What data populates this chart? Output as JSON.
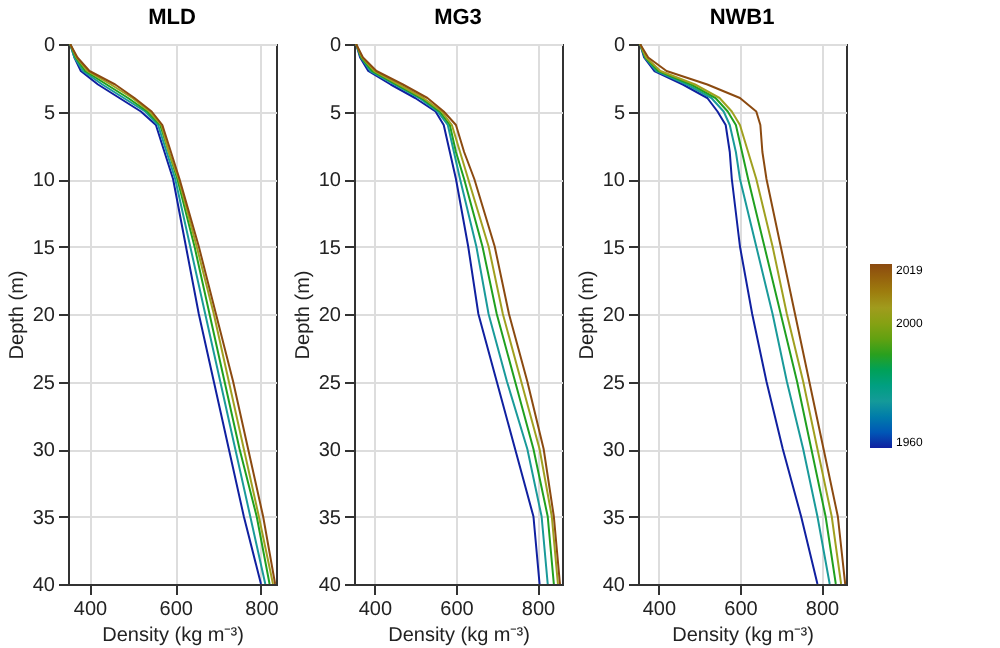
{
  "chart_data": [
    {
      "type": "line",
      "title": "MLD",
      "xlabel": "Density (kg m⁻³)",
      "ylabel": "Depth (m)",
      "xlim": [
        350,
        835
      ],
      "xticks": [
        400,
        600,
        800
      ],
      "ylim": [
        40,
        0
      ],
      "yticks": [
        0,
        5,
        10,
        15,
        20,
        25,
        30,
        35,
        40
      ],
      "grid": true,
      "series": [
        {
          "color": "#1020a0",
          "x": [
            355,
            365,
            380,
            420,
            470,
            520,
            555,
            575,
            595,
            625,
            655,
            690,
            725,
            760,
            800
          ],
          "values": [
            0,
            1,
            2,
            3,
            4,
            5,
            6,
            8,
            10,
            15,
            20,
            25,
            30,
            35,
            40
          ]
        },
        {
          "color": "#1a9a9a",
          "x": [
            355,
            365,
            385,
            430,
            480,
            530,
            560,
            580,
            600,
            635,
            670,
            705,
            740,
            775,
            810
          ],
          "values": [
            0,
            1,
            2,
            3,
            4,
            5,
            6,
            8,
            10,
            15,
            20,
            25,
            30,
            35,
            40
          ]
        },
        {
          "color": "#20a020",
          "x": [
            355,
            368,
            390,
            440,
            490,
            535,
            565,
            585,
            605,
            645,
            680,
            715,
            750,
            790,
            820
          ],
          "values": [
            0,
            1,
            2,
            3,
            4,
            5,
            6,
            8,
            10,
            15,
            20,
            25,
            30,
            35,
            40
          ]
        },
        {
          "color": "#a0a020",
          "x": [
            355,
            370,
            395,
            450,
            500,
            540,
            568,
            585,
            608,
            650,
            690,
            725,
            760,
            795,
            828
          ],
          "values": [
            0,
            1,
            2,
            3,
            4,
            5,
            6,
            8,
            10,
            15,
            20,
            25,
            30,
            35,
            40
          ]
        },
        {
          "color": "#8b4a10",
          "x": [
            355,
            372,
            400,
            460,
            505,
            545,
            570,
            590,
            610,
            655,
            695,
            735,
            770,
            805,
            833
          ],
          "values": [
            0,
            1,
            2,
            3,
            4,
            5,
            6,
            8,
            10,
            15,
            20,
            25,
            30,
            35,
            40
          ]
        }
      ]
    },
    {
      "type": "line",
      "title": "MG3",
      "xlabel": "Density (kg m⁻³)",
      "ylabel": "Depth (m)",
      "xlim": [
        350,
        860
      ],
      "xticks": [
        400,
        600,
        800
      ],
      "ylim": [
        40,
        0
      ],
      "yticks": [
        0,
        5,
        10,
        15,
        20,
        25,
        30,
        35,
        40
      ],
      "grid": true,
      "series": [
        {
          "color": "#1020a0",
          "x": [
            355,
            365,
            385,
            440,
            500,
            550,
            570,
            585,
            600,
            630,
            655,
            700,
            745,
            790,
            805
          ],
          "values": [
            0,
            1,
            2,
            3,
            4,
            5,
            6,
            8,
            10,
            15,
            20,
            25,
            30,
            35,
            40
          ]
        },
        {
          "color": "#1a9a9a",
          "x": [
            355,
            367,
            390,
            450,
            510,
            555,
            580,
            595,
            610,
            650,
            680,
            725,
            775,
            810,
            825
          ],
          "values": [
            0,
            1,
            2,
            3,
            4,
            5,
            6,
            8,
            10,
            15,
            20,
            25,
            30,
            35,
            40
          ]
        },
        {
          "color": "#20a020",
          "x": [
            355,
            368,
            395,
            455,
            515,
            560,
            585,
            600,
            620,
            665,
            700,
            745,
            790,
            825,
            840
          ],
          "values": [
            0,
            1,
            2,
            3,
            4,
            5,
            6,
            8,
            10,
            15,
            20,
            25,
            30,
            35,
            40
          ]
        },
        {
          "color": "#a0a020",
          "x": [
            355,
            370,
            400,
            460,
            520,
            565,
            590,
            610,
            630,
            680,
            715,
            760,
            805,
            835,
            850
          ],
          "values": [
            0,
            1,
            2,
            3,
            4,
            5,
            6,
            8,
            10,
            15,
            20,
            25,
            30,
            35,
            40
          ]
        },
        {
          "color": "#8b4a10",
          "x": [
            355,
            372,
            405,
            470,
            530,
            570,
            600,
            620,
            645,
            695,
            730,
            775,
            815,
            840,
            855
          ],
          "values": [
            0,
            1,
            2,
            3,
            4,
            5,
            6,
            8,
            10,
            15,
            20,
            25,
            30,
            35,
            40
          ]
        }
      ]
    },
    {
      "type": "line",
      "title": "NWB1",
      "xlabel": "Density (kg m⁻³)",
      "ylabel": "Depth (m)",
      "xlim": [
        350,
        860
      ],
      "xticks": [
        400,
        600,
        800
      ],
      "ylim": [
        40,
        0
      ],
      "yticks": [
        0,
        5,
        10,
        15,
        20,
        25,
        30,
        35,
        40
      ],
      "grid": true,
      "clim": [
        1960,
        2019
      ],
      "cticks": [
        1960,
        2000,
        2019
      ],
      "series": [
        {
          "color": "#1020a0",
          "x": [
            355,
            365,
            390,
            460,
            520,
            545,
            565,
            575,
            580,
            600,
            630,
            665,
            705,
            750,
            790
          ],
          "values": [
            0,
            1,
            2,
            3,
            4,
            5,
            6,
            8,
            10,
            15,
            20,
            25,
            30,
            35,
            40
          ]
        },
        {
          "color": "#1a9a9a",
          "x": [
            355,
            367,
            395,
            470,
            530,
            560,
            575,
            590,
            600,
            640,
            680,
            715,
            755,
            790,
            820
          ],
          "values": [
            0,
            1,
            2,
            3,
            4,
            5,
            6,
            8,
            10,
            15,
            20,
            25,
            30,
            35,
            40
          ]
        },
        {
          "color": "#20a020",
          "x": [
            355,
            368,
            400,
            480,
            540,
            570,
            590,
            605,
            620,
            660,
            700,
            740,
            775,
            810,
            835
          ],
          "values": [
            0,
            1,
            2,
            3,
            4,
            5,
            6,
            8,
            10,
            15,
            20,
            25,
            30,
            35,
            40
          ]
        },
        {
          "color": "#a0a020",
          "x": [
            355,
            370,
            405,
            490,
            550,
            580,
            600,
            620,
            640,
            680,
            715,
            755,
            790,
            825,
            848
          ],
          "values": [
            0,
            1,
            2,
            3,
            4,
            5,
            6,
            8,
            10,
            15,
            20,
            25,
            30,
            35,
            40
          ]
        },
        {
          "color": "#8b4a10",
          "x": [
            355,
            375,
            420,
            520,
            600,
            640,
            650,
            655,
            665,
            700,
            735,
            770,
            805,
            840,
            858
          ],
          "values": [
            0,
            1,
            2,
            3,
            4,
            5,
            6,
            8,
            10,
            15,
            20,
            25,
            30,
            35,
            40
          ]
        }
      ]
    }
  ]
}
